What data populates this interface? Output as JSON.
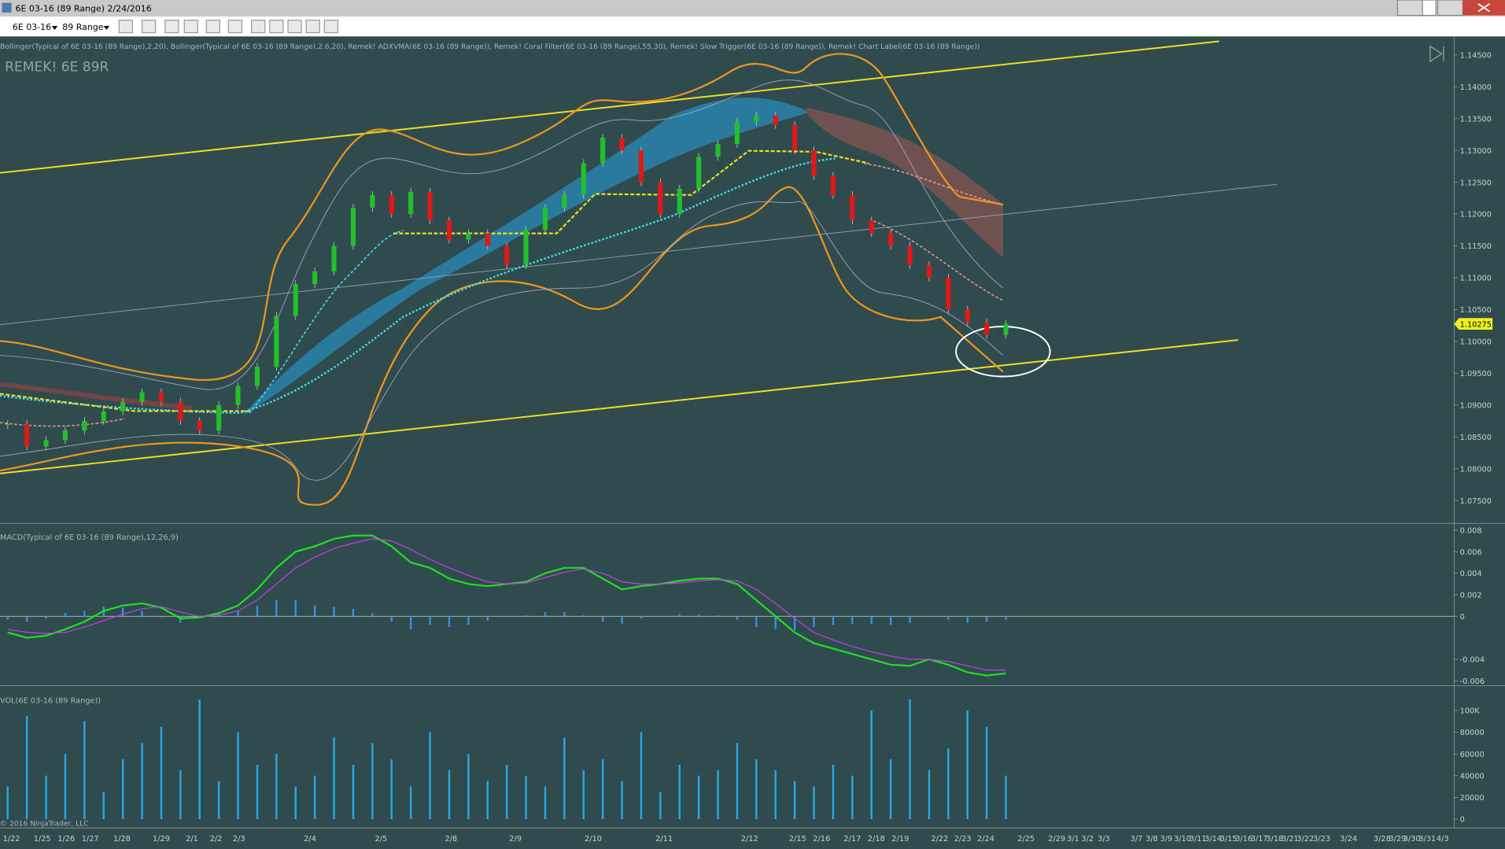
{
  "window": {
    "title": "6E 03-16 (89 Range)  2/24/2016"
  },
  "toolbar": {
    "instrument": "6E 03-16",
    "period": "89 Range"
  },
  "chart": {
    "indicators": "Bollinger(Typical of 6E 03-16 (89 Range),2,20), Bollinger(Typical of 6E 03-16 (89 Range),2.6,20), Remek! ADXVMA(6E 03-16 (89 Range)), Remek! Coral Filter(6E 03-16 (89 Range),55,30), Remek! Slow Trigger(6E 03-16 (89 Range)), Remek! Chart Label(6E 03-16 (89 Range))",
    "watermark": "REMEK! 6E 89R",
    "copyright": "© 2016 NinjaTrader, LLC",
    "price": {
      "ylim": [
        1.0714,
        1.1479
      ],
      "yticks": [
        {
          "value": 1.075,
          "label": "1.07500"
        },
        {
          "value": 1.08,
          "label": "1.08000"
        },
        {
          "value": 1.085,
          "label": "1.08500"
        },
        {
          "value": 1.09,
          "label": "1.09000"
        },
        {
          "value": 1.095,
          "label": "1.09500"
        },
        {
          "value": 1.1,
          "label": "1.10000"
        },
        {
          "value": 1.105,
          "label": "1.10500"
        },
        {
          "value": 1.11,
          "label": "1.11000"
        },
        {
          "value": 1.115,
          "label": "1.11500"
        },
        {
          "value": 1.12,
          "label": "1.12000"
        },
        {
          "value": 1.125,
          "label": "1.12500"
        },
        {
          "value": 1.13,
          "label": "1.13000"
        },
        {
          "value": 1.135,
          "label": "1.13500"
        },
        {
          "value": 1.14,
          "label": "1.14000"
        },
        {
          "value": 1.145,
          "label": "1.14500"
        }
      ],
      "closes": [
        1.087,
        1.0835,
        1.0845,
        1.086,
        1.0875,
        1.089,
        1.0905,
        1.092,
        1.0905,
        1.0875,
        1.086,
        1.09,
        1.093,
        1.096,
        1.104,
        1.109,
        1.111,
        1.115,
        1.121,
        1.123,
        1.12,
        1.1235,
        1.119,
        1.116,
        1.117,
        1.115,
        1.112,
        1.1175,
        1.121,
        1.123,
        1.128,
        1.132,
        1.13,
        1.125,
        1.12,
        1.124,
        1.129,
        1.131,
        1.1345,
        1.1355,
        1.134,
        1.13,
        1.126,
        1.123,
        1.119,
        1.117,
        1.115,
        1.112,
        1.11,
        1.105,
        1.103,
        1.101,
        1.10275
      ],
      "up_color": "#22c02a",
      "down_color": "#e01818",
      "last_price": {
        "value": 1.10275,
        "label": "1.10275"
      }
    },
    "macd": {
      "label": "MACD(Typical of 6E 03-16 (89 Range),12,26,9)",
      "ylim": [
        -0.00645,
        0.00836
      ],
      "yticks": [
        0.008,
        0.006,
        0.004,
        0.002,
        0,
        -0.004,
        -0.006
      ],
      "series": [
        {
          "color": "#20e020",
          "values": [
            -0.0015,
            -0.002,
            -0.0018,
            -0.0012,
            -0.0005,
            0.0005,
            0.001,
            0.0012,
            0.0008,
            -0.0002,
            -0.0001,
            0.0003,
            0.001,
            0.0025,
            0.0045,
            0.006,
            0.0065,
            0.0072,
            0.0075,
            0.0075,
            0.0065,
            0.005,
            0.0045,
            0.0035,
            0.003,
            0.0028,
            0.003,
            0.0032,
            0.004,
            0.0045,
            0.0045,
            0.0035,
            0.0025,
            0.0028,
            0.003,
            0.0033,
            0.0035,
            0.0035,
            0.003,
            0.0015,
            0.0,
            -0.0015,
            -0.0025,
            -0.003,
            -0.0035,
            -0.004,
            -0.0045,
            -0.0046,
            -0.004,
            -0.0045,
            -0.0052,
            -0.0055,
            -0.0053
          ]
        },
        {
          "color": "#c040e0",
          "values": [
            -0.0012,
            -0.0015,
            -0.0016,
            -0.0015,
            -0.001,
            -0.0004,
            0.0002,
            0.0007,
            0.0009,
            0.0004,
            0.0,
            0.0001,
            0.0005,
            0.0015,
            0.003,
            0.0045,
            0.0055,
            0.0063,
            0.0068,
            0.0072,
            0.007,
            0.0062,
            0.0053,
            0.0045,
            0.0038,
            0.0032,
            0.003,
            0.0031,
            0.0036,
            0.0041,
            0.0044,
            0.004,
            0.0032,
            0.003,
            0.003,
            0.0031,
            0.0033,
            0.0034,
            0.0033,
            0.0025,
            0.0012,
            -0.0002,
            -0.0015,
            -0.0022,
            -0.0028,
            -0.0033,
            -0.0037,
            -0.004,
            -0.004,
            -0.0042,
            -0.0046,
            -0.005,
            -0.005
          ]
        }
      ],
      "histogram": {
        "color": "#3a8fe0",
        "values": [
          -0.0003,
          -0.0005,
          -0.0002,
          0.0003,
          0.0005,
          0.0009,
          0.0008,
          0.0005,
          -0.0001,
          -0.0006,
          -0.0001,
          0.0002,
          0.0005,
          0.001,
          0.0015,
          0.0015,
          0.001,
          0.0009,
          0.0007,
          0.0003,
          -0.0005,
          -0.0012,
          -0.0008,
          -0.001,
          -0.0008,
          -0.0004,
          0.0,
          0.0001,
          0.0004,
          0.0004,
          0.0001,
          -0.0005,
          -0.0007,
          -0.0002,
          0.0,
          0.0002,
          0.0002,
          0.0001,
          -0.0003,
          -0.001,
          -0.0012,
          -0.0013,
          -0.001,
          -0.0008,
          -0.0007,
          -0.0007,
          -0.0008,
          -0.0006,
          0.0,
          -0.0003,
          -0.0006,
          -0.0005,
          -0.0003
        ]
      }
    },
    "volume": {
      "label": "VOL(6E 03-16 (89 Range))",
      "ylim": [
        -8000,
        120000
      ],
      "yticks": [
        0,
        20000,
        40000,
        60000,
        80000,
        {
          "value": 100000,
          "label": "100K"
        }
      ],
      "color": "#29a8e0",
      "values": [
        30000,
        95000,
        40000,
        60000,
        90000,
        25000,
        55000,
        70000,
        85000,
        45000,
        110000,
        35000,
        80000,
        50000,
        60000,
        30000,
        40000,
        75000,
        50000,
        70000,
        55000,
        30000,
        80000,
        45000,
        60000,
        35000,
        50000,
        40000,
        30000,
        75000,
        45000,
        55000,
        35000,
        80000,
        25000,
        50000,
        40000,
        45000,
        70000,
        55000,
        45000,
        35000,
        30000,
        50000,
        40000,
        100000,
        55000,
        110000,
        45000,
        65000,
        100000,
        85000,
        40000
      ]
    },
    "dates": [
      "1/22",
      "1/25",
      "1/26",
      "1/27",
      "1/28",
      "1/29",
      "2/1",
      "2/2",
      "2/3",
      "2/4",
      "2/5",
      "2/8",
      "2/9",
      "2/10",
      "2/11",
      "2/12",
      "2/15",
      "2/16",
      "2/17",
      "2/18",
      "2/19",
      "2/22",
      "2/23",
      "2/24",
      "2/25",
      "2/29",
      "3/1",
      "3/2",
      "3/3",
      "3/7",
      "3/8",
      "3/9",
      "3/10",
      "3/11",
      "3/14",
      "3/15",
      "3/16",
      "3/17",
      "3/18",
      "3/21",
      "3/22",
      "3/23",
      "3/24",
      "3/28",
      "3/29",
      "3/30",
      "3/31",
      "4/3"
    ]
  }
}
